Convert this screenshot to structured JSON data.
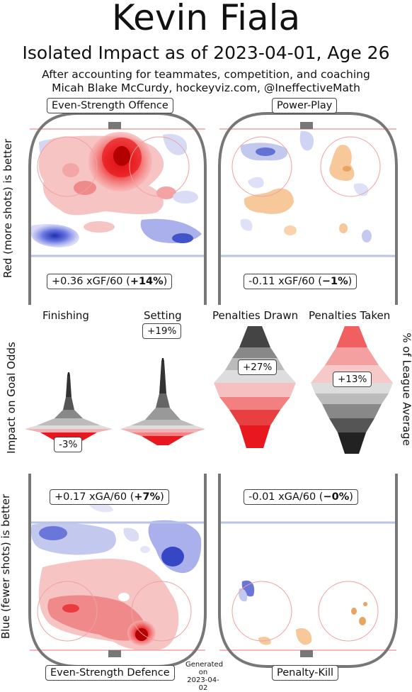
{
  "header": {
    "title": "Kevin Fiala",
    "subtitle": "Isolated Impact as of 2023-04-01, Age 26",
    "credit_line1": "After accounting for teammates, competition, and coaching",
    "credit_line2": "Micah Blake McCurdy, hockeyviz.com, @IneffectiveMath"
  },
  "panels": {
    "es_offence": {
      "label": "Even-Strength Offence",
      "stat_value": "+0.36 xGF/60 (",
      "stat_pct": "+14%",
      "stat_close": ")"
    },
    "power_play": {
      "label": "Power-Play",
      "stat_value": "-0.11 xGF/60 (",
      "stat_pct": "−1%",
      "stat_close": ")"
    },
    "es_defence": {
      "label": "Even-Strength Defence",
      "stat_value": "+0.17 xGA/60 (",
      "stat_pct": "+7%",
      "stat_close": ")"
    },
    "penalty_kill": {
      "label": "Penalty-Kill",
      "stat_value": "-0.01 xGA/60 (",
      "stat_pct": "−0%",
      "stat_close": ")"
    }
  },
  "side_labels": {
    "top_left": "Red (more shots) is better",
    "bottom_left": "Blue (fewer shots) is better",
    "middle_left": "Impact on Goal Odds",
    "middle_right": "% of League Average"
  },
  "footer": {
    "generated_line1": "Generated",
    "generated_line2": "on",
    "generated_line3": "2023-04-02"
  },
  "colors": {
    "red": "#e8191e",
    "blue": "#3a4ed0",
    "orange": "#f6b26b",
    "rink_line": "#777777"
  },
  "chart_data": [
    {
      "type": "violin",
      "title": "",
      "categories": [
        "Finishing",
        "Setting",
        "Penalties Drawn",
        "Penalties Taken"
      ],
      "values": [
        -3,
        19,
        27,
        13
      ],
      "labels": [
        "-3%",
        "+19%",
        "+27%",
        "+13%"
      ],
      "ylabel_left": "Impact on Goal Odds",
      "ylabel_right": "% of League Average"
    }
  ]
}
